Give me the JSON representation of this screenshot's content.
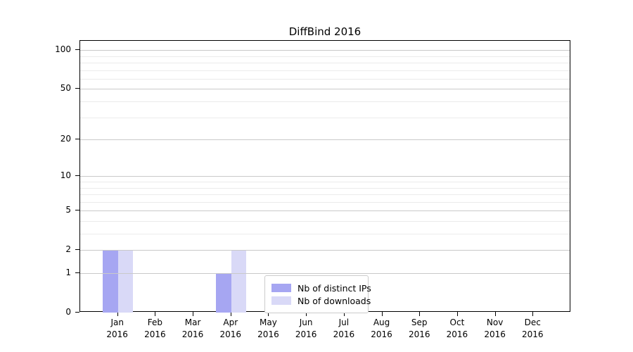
{
  "chart_data": {
    "type": "bar",
    "title": "DiffBind 2016",
    "categories": [
      {
        "month": "Jan",
        "year": "2016"
      },
      {
        "month": "Feb",
        "year": "2016"
      },
      {
        "month": "Mar",
        "year": "2016"
      },
      {
        "month": "Apr",
        "year": "2016"
      },
      {
        "month": "May",
        "year": "2016"
      },
      {
        "month": "Jun",
        "year": "2016"
      },
      {
        "month": "Jul",
        "year": "2016"
      },
      {
        "month": "Aug",
        "year": "2016"
      },
      {
        "month": "Sep",
        "year": "2016"
      },
      {
        "month": "Oct",
        "year": "2016"
      },
      {
        "month": "Nov",
        "year": "2016"
      },
      {
        "month": "Dec",
        "year": "2016"
      }
    ],
    "series": [
      {
        "name": "Nb of distinct IPs",
        "color": "#a6a6f2",
        "values": [
          2,
          0,
          0,
          1,
          0,
          0,
          0,
          0,
          0,
          0,
          0,
          0
        ]
      },
      {
        "name": "Nb of downloads",
        "color": "#d9d9f7",
        "values": [
          2,
          0,
          0,
          2,
          0,
          0,
          0,
          0,
          0,
          0,
          0,
          0
        ]
      }
    ],
    "xlabel": "",
    "ylabel": "",
    "yscale": "log1p",
    "ylim": [
      0,
      118
    ],
    "yticks": [
      0,
      1,
      2,
      5,
      10,
      20,
      50,
      100
    ],
    "yticks_minor": [
      3,
      4,
      6,
      7,
      8,
      9,
      30,
      40,
      60,
      70,
      80,
      90
    ],
    "grid": true,
    "legend_position": "inside-bottom-center",
    "colors": {
      "axis": "#000000",
      "grid_major": "#c9c9c9",
      "grid_minor": "#ebebeb",
      "legend_border": "#cccccc"
    }
  }
}
